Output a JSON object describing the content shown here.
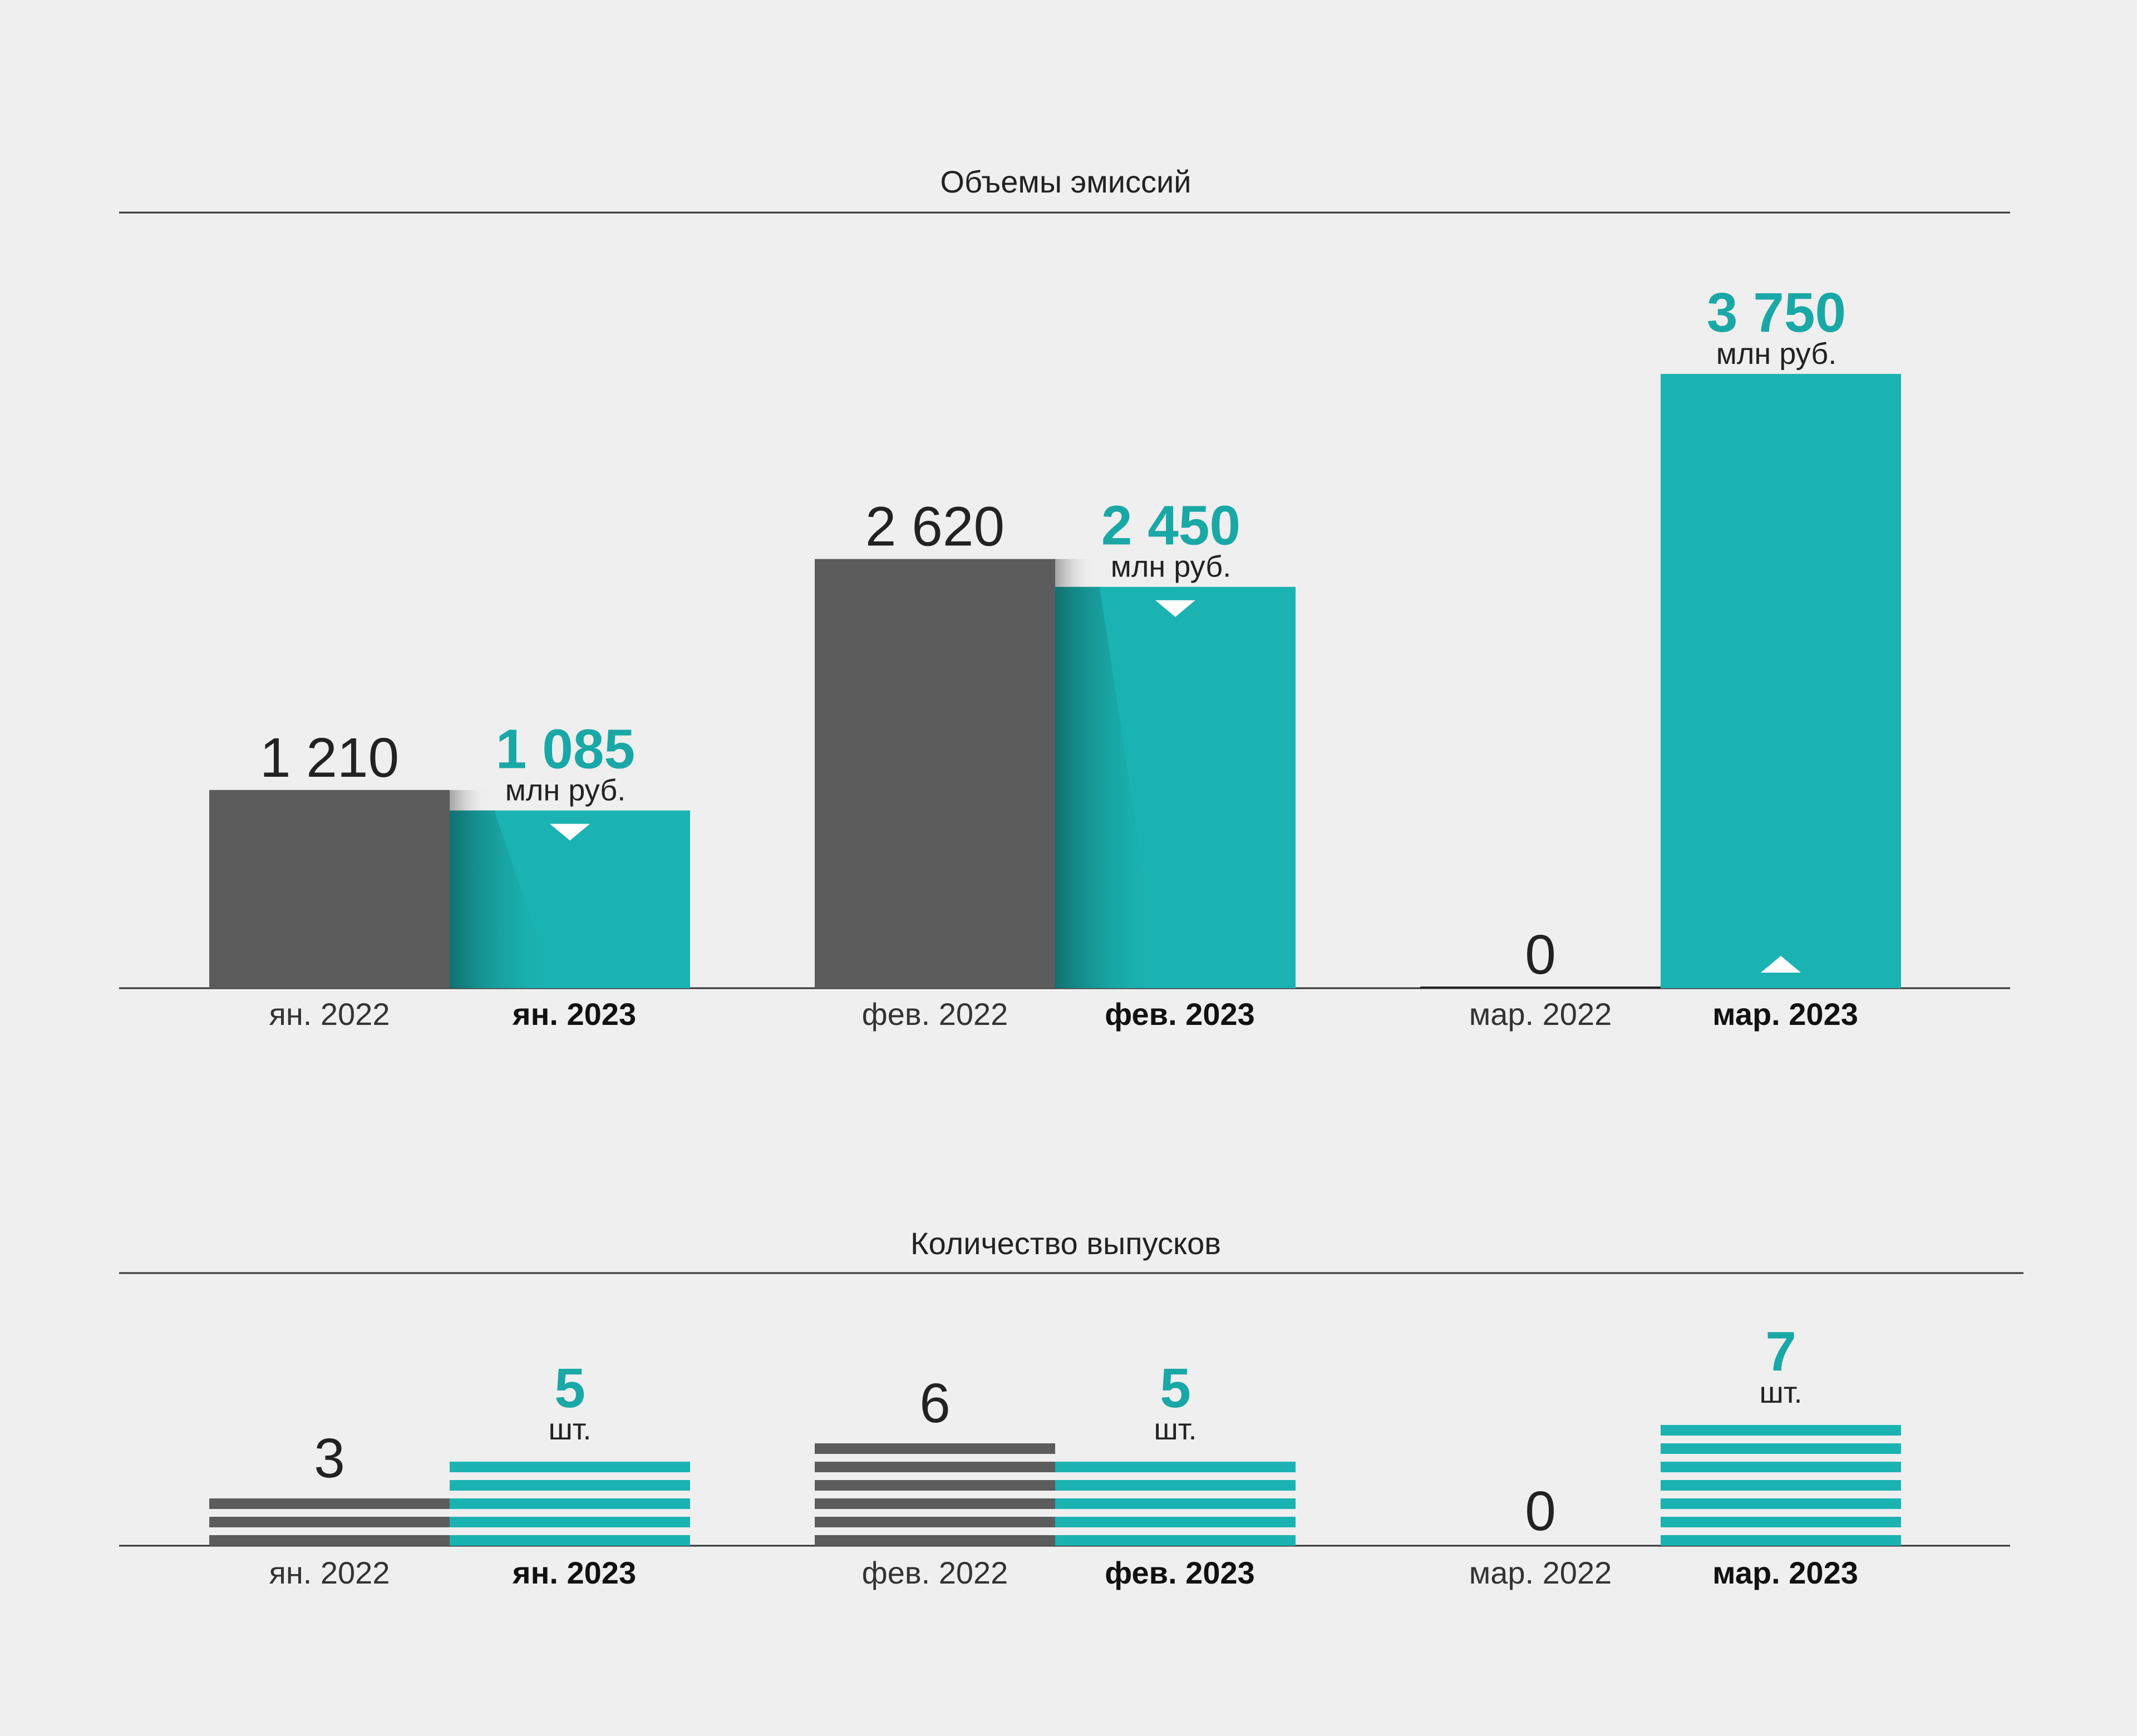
{
  "colors": {
    "background": "#efefef",
    "bar_2022": "#5c5c5c",
    "bar_2023": "#1bb3b1",
    "accent_text": "#1aa8a6",
    "text": "#222222",
    "axis": "#333333",
    "stripe_gap": "#efefef"
  },
  "chart_data": [
    {
      "type": "bar",
      "title": "Объемы эмиссий",
      "categories": [
        "янв.",
        "фев.",
        "мар."
      ],
      "x_labels_2022": [
        "ян. 2022",
        "фев. 2022",
        "мар. 2022"
      ],
      "x_labels_2023": [
        "ян. 2023",
        "фев. 2023",
        "мар. 2023"
      ],
      "series": [
        {
          "values": [
            1210,
            2620,
            0
          ],
          "value_labels": [
            "1 210",
            "2 620",
            "0"
          ]
        },
        {
          "values": [
            1085,
            2450,
            3750
          ],
          "value_labels": [
            "1 085",
            "2 450",
            "3 750"
          ],
          "unit": "млн руб.",
          "change_direction": [
            "down",
            "down",
            "up"
          ]
        }
      ],
      "ylim": [
        0,
        3750
      ],
      "grid": false
    },
    {
      "type": "bar",
      "title": "Количество выпусков",
      "categories": [
        "янв.",
        "фев.",
        "мар."
      ],
      "x_labels_2022": [
        "ян. 2022",
        "фев. 2022",
        "мар. 2022"
      ],
      "x_labels_2023": [
        "ян. 2023",
        "фев. 2023",
        "мар. 2023"
      ],
      "series": [
        {
          "values": [
            3,
            6,
            0
          ],
          "value_labels": [
            "3",
            "6",
            "0"
          ]
        },
        {
          "values": [
            5,
            5,
            7
          ],
          "value_labels": [
            "5",
            "5",
            "7"
          ],
          "unit": "шт."
        }
      ],
      "ylim": [
        0,
        7
      ],
      "grid": false
    }
  ]
}
